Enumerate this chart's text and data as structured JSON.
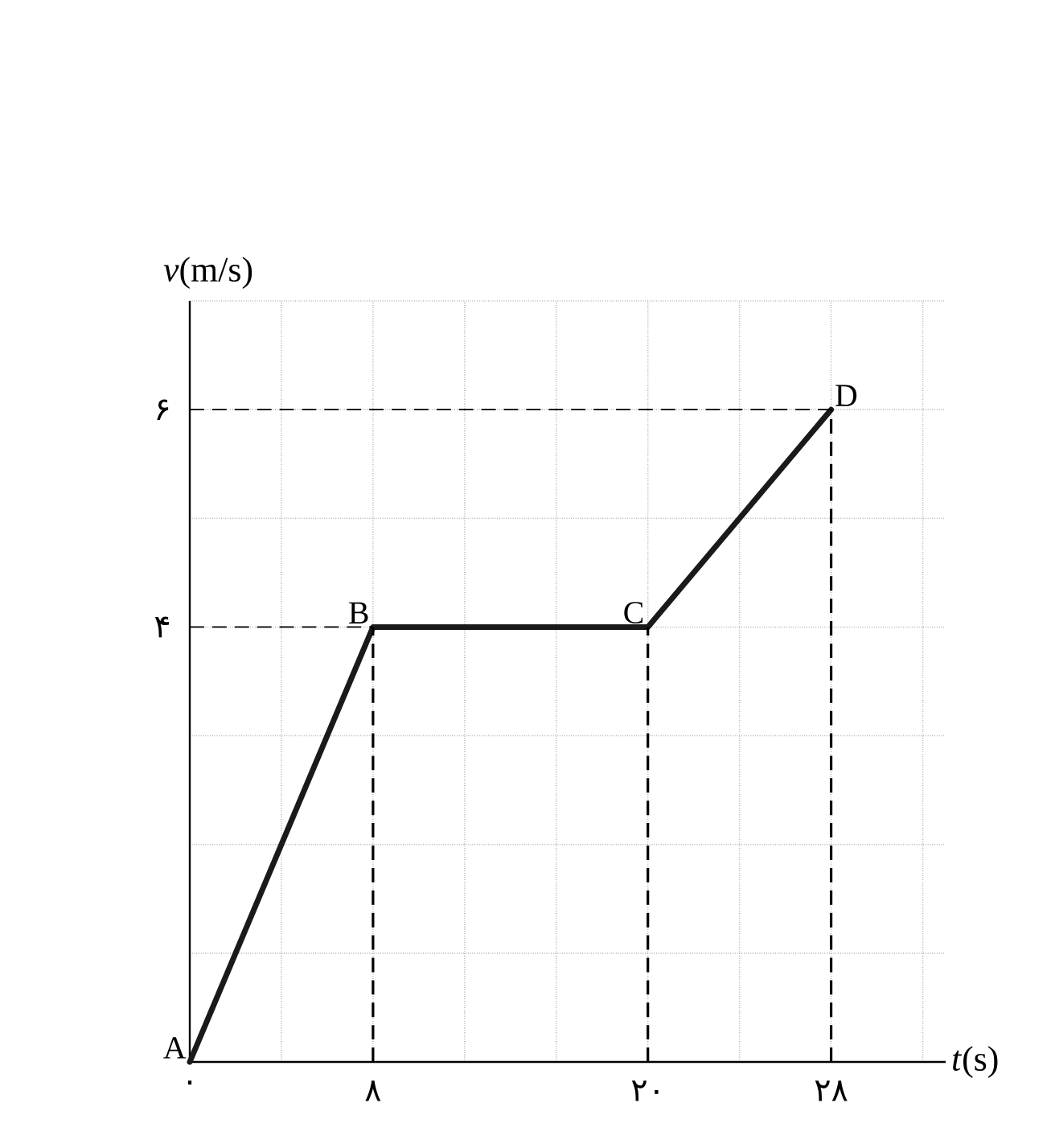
{
  "chart_data": {
    "type": "line",
    "xlabel": "*t*(s)",
    "ylabel": "*v*(m/s)",
    "x": [
      0,
      8,
      20,
      28
    ],
    "series": [
      {
        "color": "#1a1a1a",
        "values": [
          0,
          4,
          4,
          6
        ]
      }
    ],
    "xlim": [
      0,
      33
    ],
    "ylim": [
      0,
      7
    ],
    "xticks": [
      {
        "value": 0,
        "label": "۰"
      },
      {
        "value": 4,
        "label": null
      },
      {
        "value": 8,
        "label": "۸"
      },
      {
        "value": 12,
        "label": null
      },
      {
        "value": 16,
        "label": null
      },
      {
        "value": 20,
        "label": "۲۰"
      },
      {
        "value": 24,
        "label": null
      },
      {
        "value": 28,
        "label": "۲۸"
      },
      {
        "value": 32,
        "label": null
      }
    ],
    "yticks": [
      {
        "value": 1,
        "label": null
      },
      {
        "value": 2,
        "label": null
      },
      {
        "value": 3,
        "label": null
      },
      {
        "value": 4,
        "label": "۴"
      },
      {
        "value": 5,
        "label": null
      },
      {
        "value": 6,
        "label": "۶"
      },
      {
        "value": 7,
        "label": null
      }
    ],
    "ref_lines": [
      {
        "axis": "y",
        "value": 4,
        "line_style": "dashed"
      },
      {
        "axis": "y",
        "value": 6,
        "line_style": "dashed"
      },
      {
        "axis": "x",
        "value": 8,
        "line_style": "dashed"
      },
      {
        "axis": "x",
        "value": 20,
        "line_style": "dashed"
      },
      {
        "axis": "x",
        "value": 28,
        "line_style": "dashed"
      }
    ],
    "annotations": [
      {
        "text": "A",
        "x": 0,
        "y": 0
      },
      {
        "text": "B",
        "x": 8,
        "y": 4
      },
      {
        "text": "C",
        "x": 20,
        "y": 4
      },
      {
        "text": "D",
        "x": 28,
        "y": 6
      }
    ],
    "grid": true,
    "marker": "none",
    "line_style": "solid"
  }
}
